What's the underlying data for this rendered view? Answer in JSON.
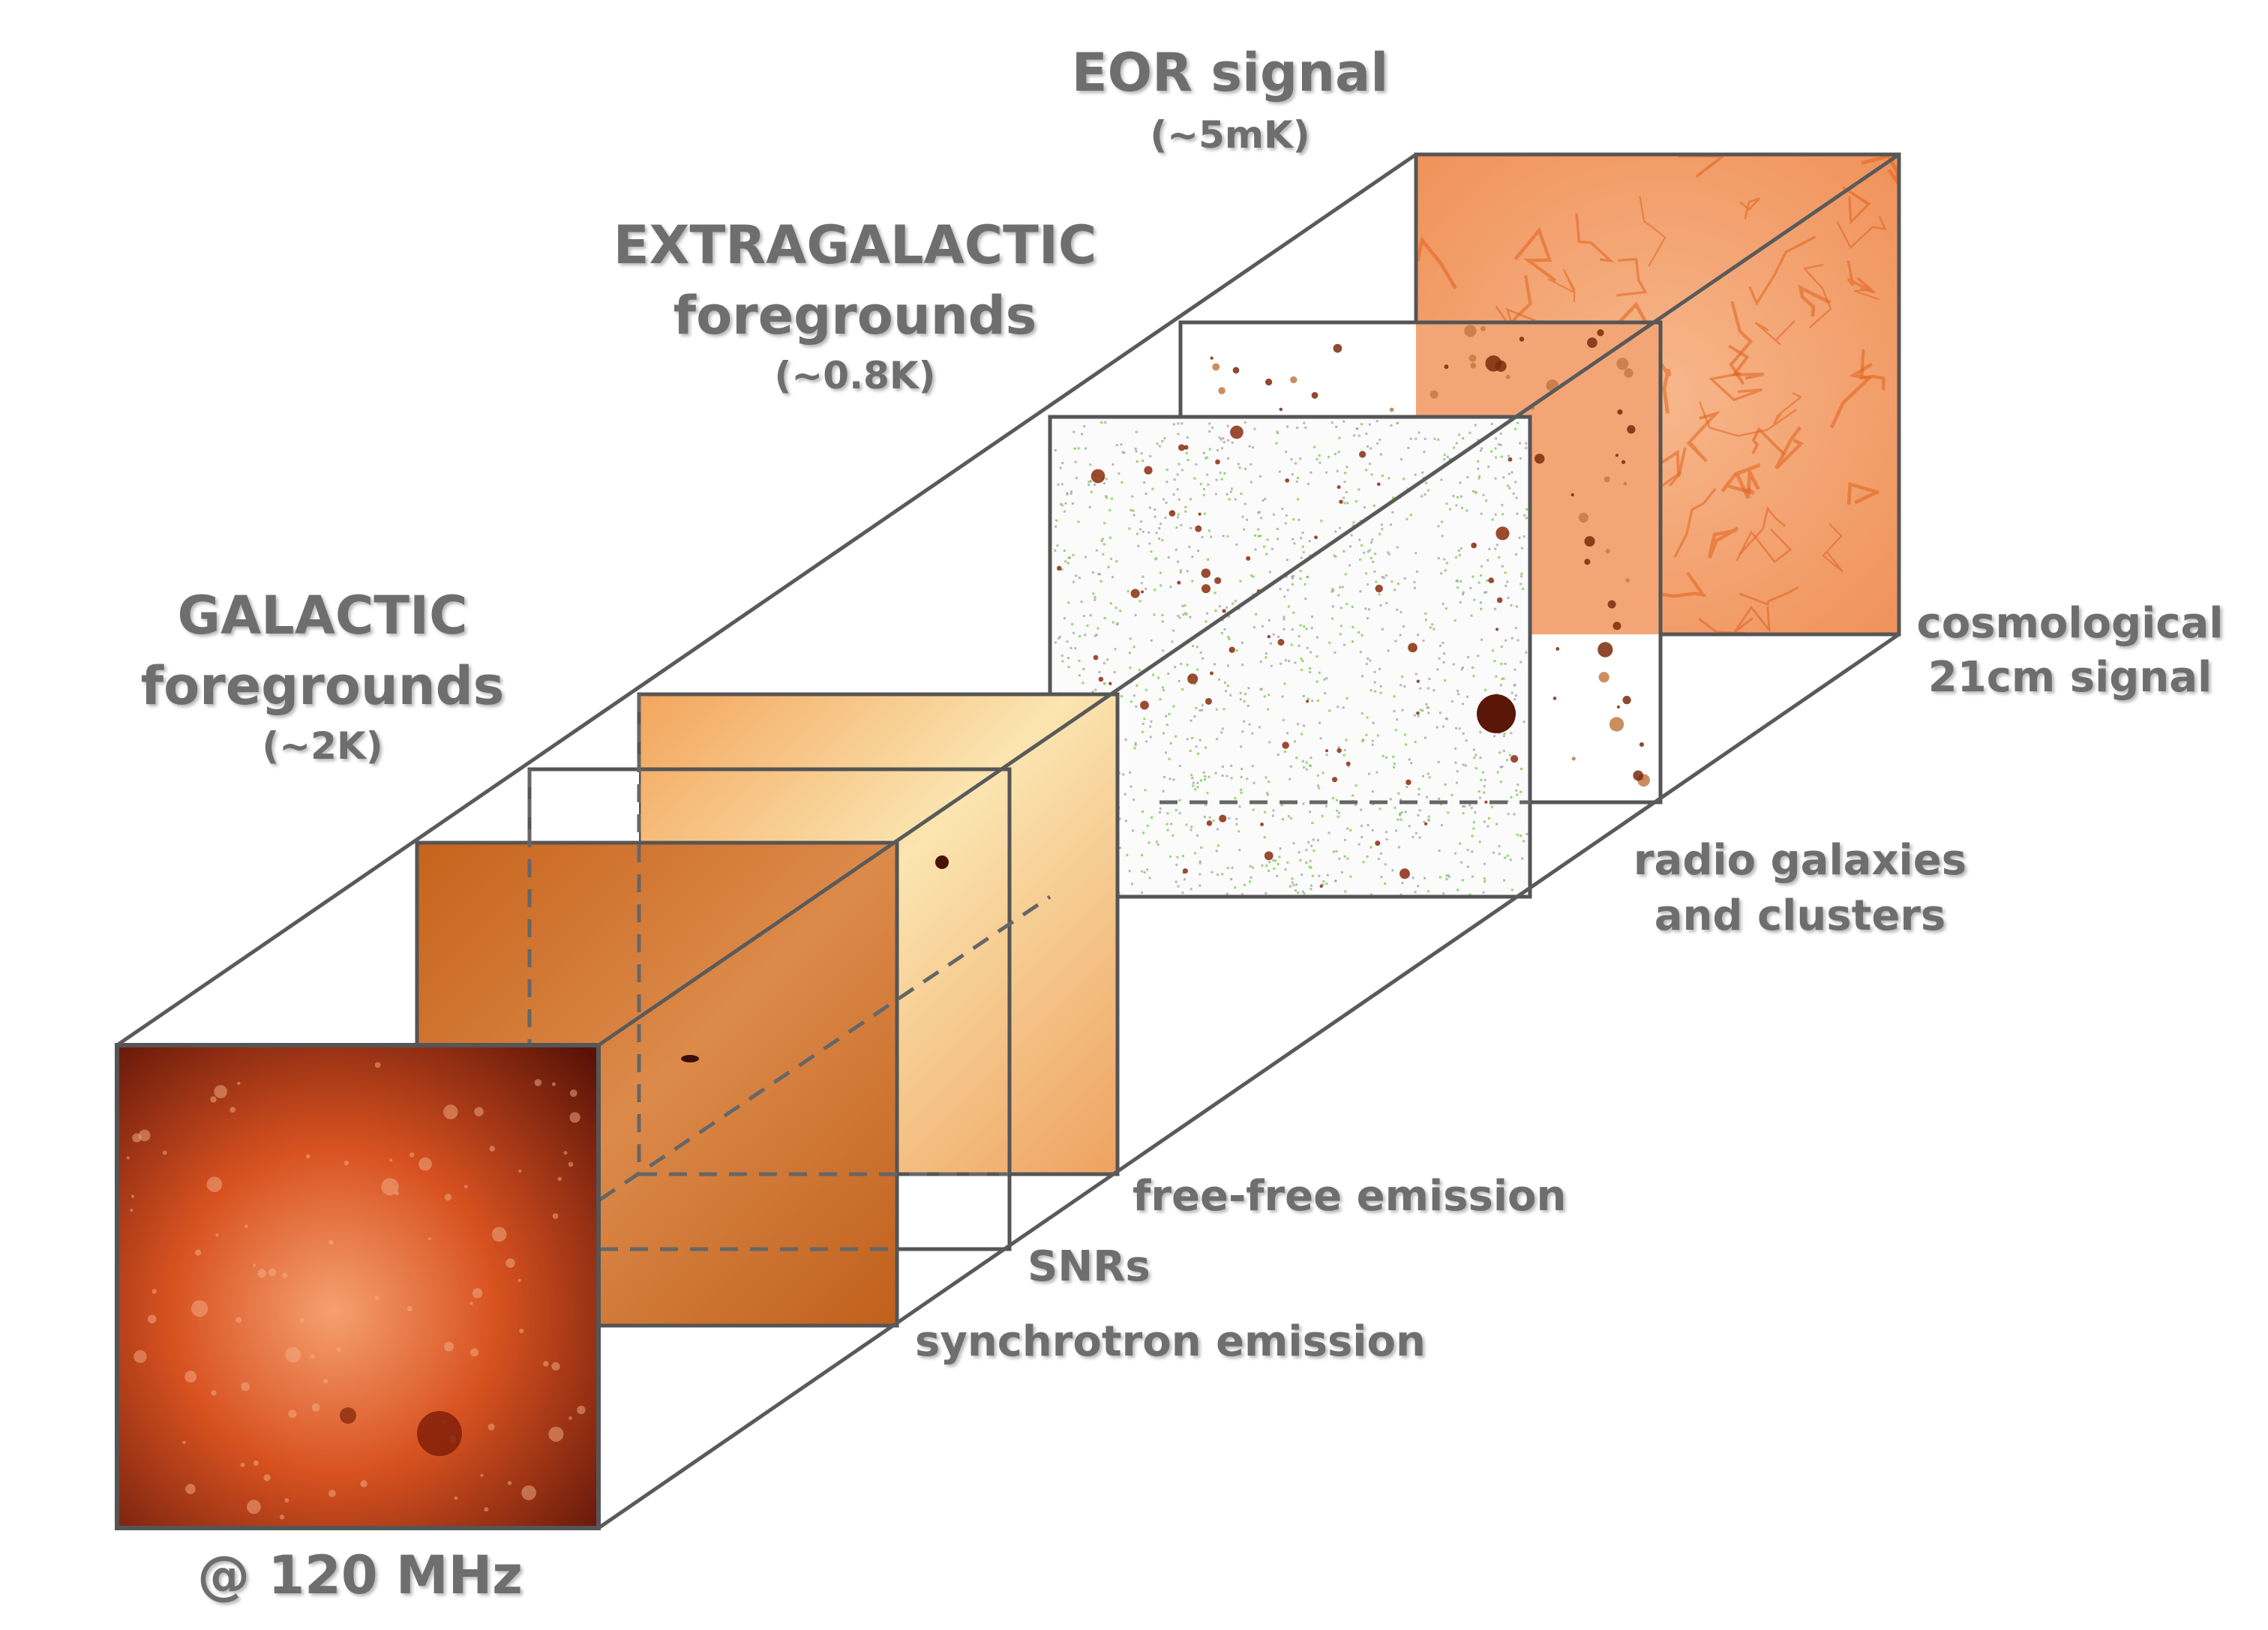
{
  "header": {
    "eor_title": "EOR signal",
    "eor_amp": "(~5mK)",
    "extragalactic_title": "EXTRAGALACTIC",
    "extragalactic_sub": "foregrounds",
    "extragalactic_amp": "(~0.8K)",
    "galactic_title": "GALACTIC",
    "galactic_sub": "foregrounds",
    "galactic_amp": "(~2K)"
  },
  "components": {
    "cosmological_1": "cosmological",
    "cosmological_2": "21cm signal",
    "radio_1": "radio galaxies",
    "radio_2": "and clusters",
    "freefree": "free-free emission",
    "snrs": "SNRs",
    "synchrotron": "synchrotron emission"
  },
  "frequency": "@ 120 MHz",
  "colors": {
    "label": "#6e6e6e",
    "frame": "#555555",
    "eor_map": "#f39a62",
    "freefree_map": "#f0a45e",
    "synchrotron_map": "#c8681f",
    "galactic_map": "#a8320e",
    "source_dark": "#6b1e06",
    "noise_green": "#7ed957"
  },
  "icons": [
    "eor-map",
    "radio-galaxies-map",
    "point-sources-map",
    "free-free-map",
    "snr-map",
    "synchrotron-map",
    "total-sky-map"
  ]
}
